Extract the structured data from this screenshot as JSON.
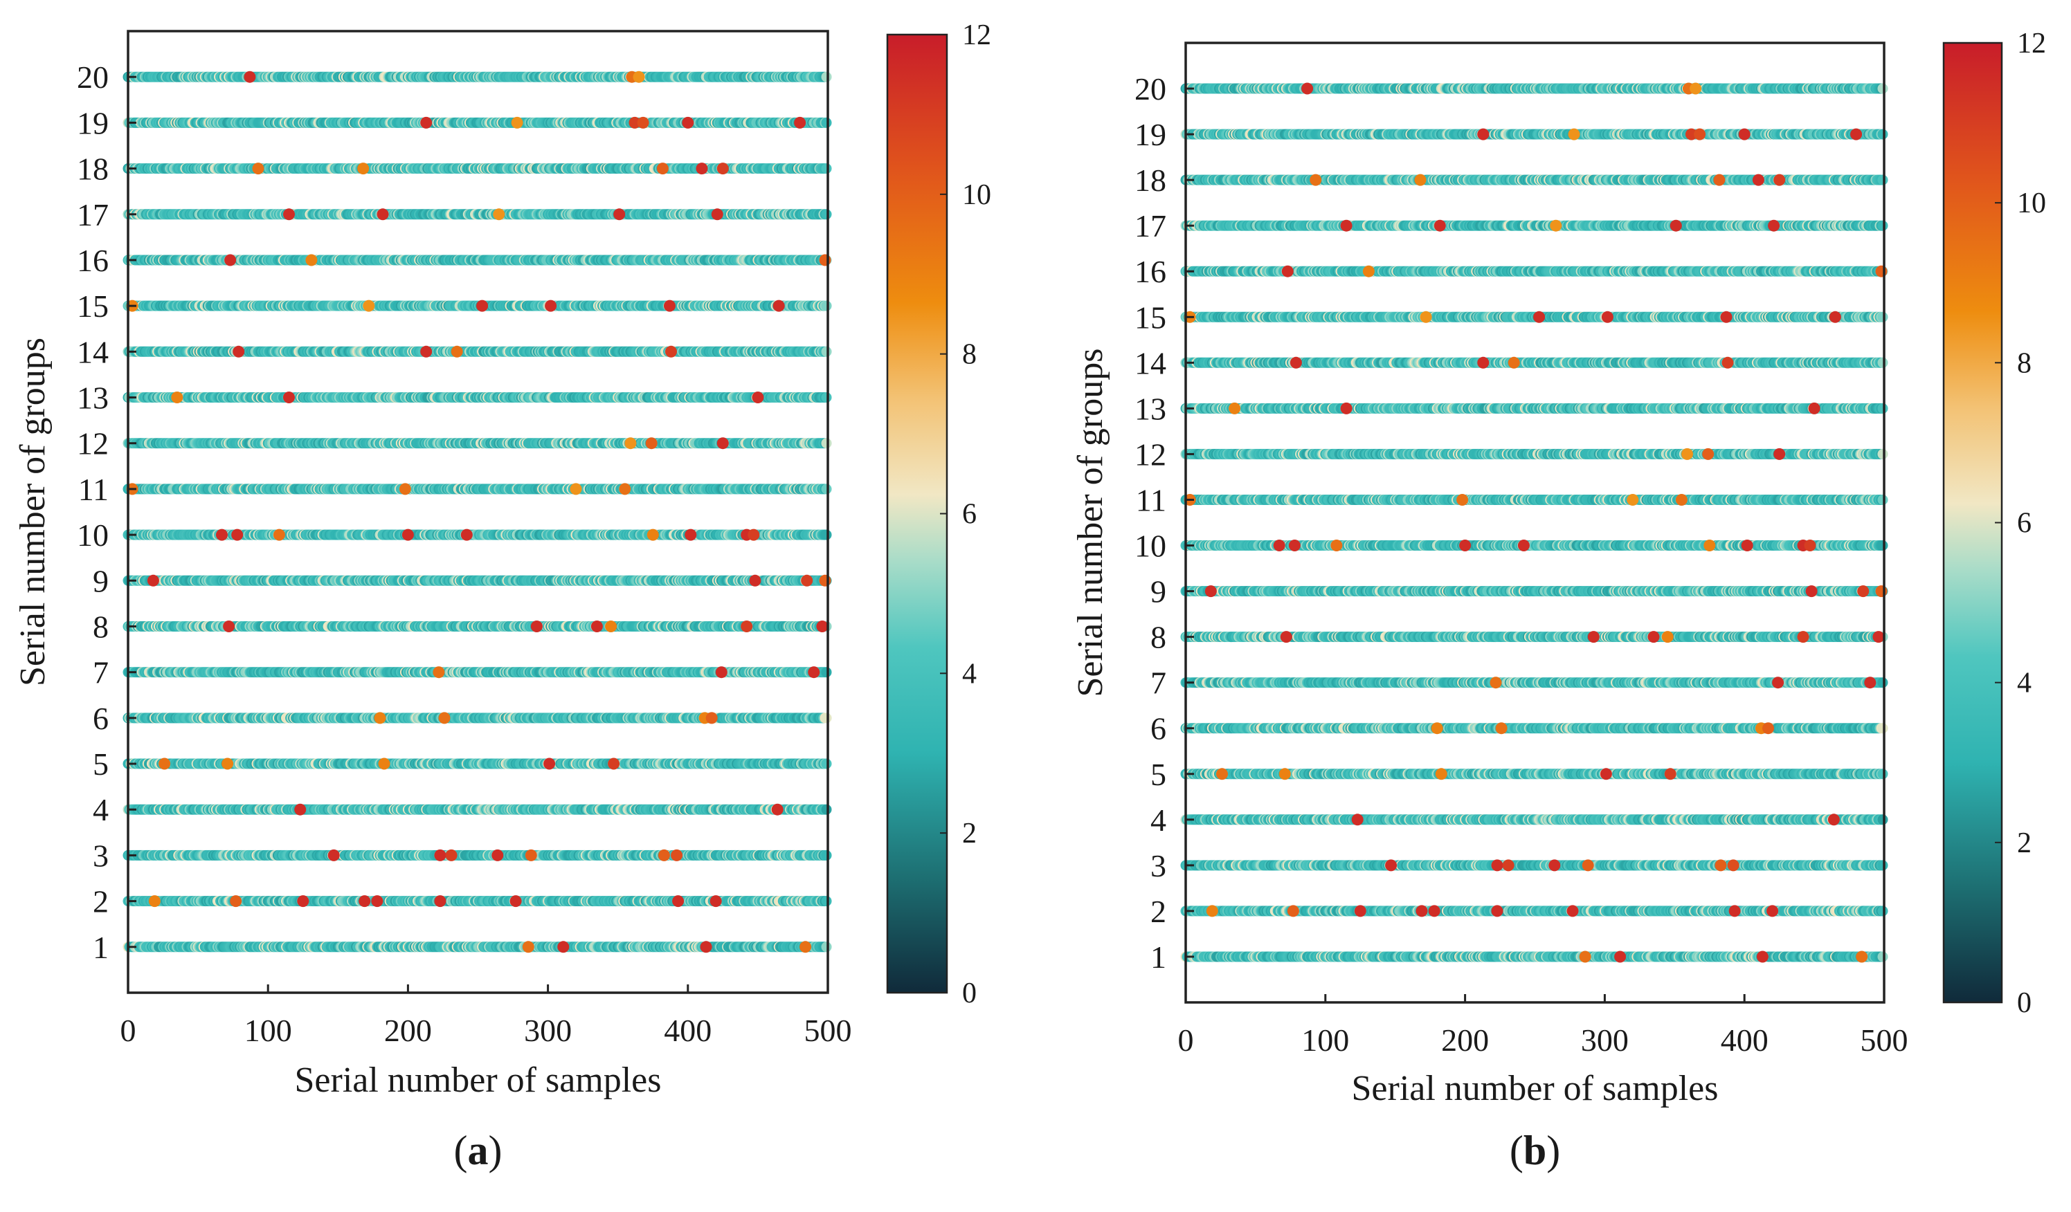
{
  "colors": {
    "colormap": [
      "#102a3a",
      "#1d6f72",
      "#2fb3b1",
      "#4fc6bf",
      "#a8dcc8",
      "#f1e7c4",
      "#f3c274",
      "#ee8d0f",
      "#e0541c",
      "#c81d2a"
    ],
    "axis": "#222222"
  },
  "chart_data": [
    {
      "type": "scatter",
      "panel_label": "(a)",
      "xlabel": "Serial number of samples",
      "ylabel": "Serial number of groups",
      "xlim": [
        0,
        500
      ],
      "ylim": [
        0,
        21
      ],
      "x_ticks": [
        "0",
        "100",
        "200",
        "300",
        "400",
        "500"
      ],
      "y_ticks": [
        "1",
        "2",
        "3",
        "4",
        "5",
        "6",
        "7",
        "8",
        "9",
        "10",
        "11",
        "12",
        "13",
        "14",
        "15",
        "16",
        "17",
        "18",
        "19",
        "20"
      ],
      "colorbar": {
        "min": 0,
        "max": 12,
        "ticks": [
          "0",
          "2",
          "4",
          "6",
          "8",
          "10",
          "12"
        ]
      },
      "samples_per_group": 500,
      "base_value_range": [
        2.8,
        5.6
      ],
      "highlights": {
        "20": [
          [
            87,
            11.5
          ],
          [
            360,
            9.5
          ],
          [
            365,
            8.5
          ]
        ],
        "19": [
          [
            213,
            11.5
          ],
          [
            278,
            8.5
          ],
          [
            362,
            11
          ],
          [
            368,
            10.5
          ],
          [
            400,
            11.5
          ],
          [
            480,
            11.5
          ]
        ],
        "18": [
          [
            93,
            9.5
          ],
          [
            168,
            9
          ],
          [
            382,
            10
          ],
          [
            410,
            11.5
          ],
          [
            425,
            11
          ]
        ],
        "17": [
          [
            115,
            11.5
          ],
          [
            182,
            11.5
          ],
          [
            265,
            8.5
          ],
          [
            351,
            11.5
          ],
          [
            421,
            11.5
          ]
        ],
        "16": [
          [
            73,
            11.5
          ],
          [
            131,
            9
          ],
          [
            498,
            10
          ]
        ],
        "15": [
          [
            3,
            9
          ],
          [
            172,
            8.5
          ],
          [
            253,
            11.5
          ],
          [
            302,
            11.5
          ],
          [
            387,
            11.5
          ],
          [
            465,
            11.5
          ]
        ],
        "14": [
          [
            79,
            11.5
          ],
          [
            213,
            11.5
          ],
          [
            235,
            9.5
          ],
          [
            388,
            11
          ]
        ],
        "13": [
          [
            35,
            9
          ],
          [
            115,
            11.5
          ],
          [
            450,
            11.5
          ]
        ],
        "12": [
          [
            359,
            8.5
          ],
          [
            374,
            10
          ],
          [
            425,
            11.5
          ]
        ],
        "11": [
          [
            3,
            9.5
          ],
          [
            198,
            9.5
          ],
          [
            320,
            8.5
          ],
          [
            355,
            9.5
          ]
        ],
        "10": [
          [
            67,
            11.5
          ],
          [
            78,
            11.5
          ],
          [
            108,
            9.5
          ],
          [
            200,
            11.5
          ],
          [
            242,
            11.5
          ],
          [
            375,
            9
          ],
          [
            402,
            11.5
          ],
          [
            442,
            11.5
          ],
          [
            447,
            11
          ]
        ],
        "9": [
          [
            18,
            11.5
          ],
          [
            448,
            11.5
          ],
          [
            485,
            11
          ],
          [
            498,
            10
          ]
        ],
        "8": [
          [
            72,
            11.5
          ],
          [
            292,
            11.5
          ],
          [
            335,
            11.5
          ],
          [
            345,
            9
          ],
          [
            442,
            11
          ],
          [
            496,
            11.5
          ]
        ],
        "7": [
          [
            222,
            9.5
          ],
          [
            424,
            11.5
          ],
          [
            490,
            11.5
          ]
        ],
        "6": [
          [
            180,
            9
          ],
          [
            226,
            9.5
          ],
          [
            412,
            9
          ],
          [
            417,
            10
          ]
        ],
        "5": [
          [
            26,
            9.5
          ],
          [
            71,
            9
          ],
          [
            183,
            9
          ],
          [
            301,
            11.5
          ],
          [
            347,
            11
          ]
        ],
        "4": [
          [
            123,
            11.5
          ],
          [
            464,
            11.5
          ]
        ],
        "3": [
          [
            147,
            11.5
          ],
          [
            223,
            11.5
          ],
          [
            231,
            11
          ],
          [
            264,
            11.5
          ],
          [
            288,
            10
          ],
          [
            383,
            10
          ],
          [
            392,
            10.5
          ]
        ],
        "2": [
          [
            19,
            9
          ],
          [
            77,
            10
          ],
          [
            125,
            11.5
          ],
          [
            169,
            11.5
          ],
          [
            178,
            11.5
          ],
          [
            223,
            11.5
          ],
          [
            277,
            11.5
          ],
          [
            393,
            11.5
          ],
          [
            420,
            11.5
          ]
        ],
        "1": [
          [
            286,
            9.5
          ],
          [
            311,
            11.5
          ],
          [
            413,
            11.5
          ],
          [
            484,
            9.5
          ]
        ]
      }
    },
    {
      "type": "scatter",
      "panel_label": "(b)",
      "xlabel": "Serial number of samples",
      "ylabel": "Serial number of groups",
      "xlim": [
        0,
        500
      ],
      "ylim": [
        0,
        21
      ],
      "x_ticks": [
        "0",
        "100",
        "200",
        "300",
        "400",
        "500"
      ],
      "y_ticks": [
        "1",
        "2",
        "3",
        "4",
        "5",
        "6",
        "7",
        "8",
        "9",
        "10",
        "11",
        "12",
        "13",
        "14",
        "15",
        "16",
        "17",
        "18",
        "19",
        "20"
      ],
      "colorbar": {
        "min": 0,
        "max": 12,
        "ticks": [
          "0",
          "2",
          "4",
          "6",
          "8",
          "10",
          "12"
        ]
      },
      "samples_per_group": 500,
      "base_value_range": [
        2.8,
        5.6
      ],
      "highlights": {
        "20": [
          [
            87,
            11.5
          ],
          [
            360,
            9.5
          ],
          [
            365,
            8.5
          ]
        ],
        "19": [
          [
            213,
            11.5
          ],
          [
            278,
            8.5
          ],
          [
            362,
            11
          ],
          [
            368,
            10.5
          ],
          [
            400,
            11.5
          ],
          [
            480,
            11.5
          ]
        ],
        "18": [
          [
            93,
            9.5
          ],
          [
            168,
            9
          ],
          [
            382,
            10
          ],
          [
            410,
            11.5
          ],
          [
            425,
            11
          ]
        ],
        "17": [
          [
            115,
            11.5
          ],
          [
            182,
            11.5
          ],
          [
            265,
            8.5
          ],
          [
            351,
            11.5
          ],
          [
            421,
            11.5
          ]
        ],
        "16": [
          [
            73,
            11.5
          ],
          [
            131,
            9
          ],
          [
            498,
            10
          ]
        ],
        "15": [
          [
            3,
            9
          ],
          [
            172,
            8.5
          ],
          [
            253,
            11.5
          ],
          [
            302,
            11.5
          ],
          [
            387,
            11.5
          ],
          [
            465,
            11.5
          ]
        ],
        "14": [
          [
            79,
            11.5
          ],
          [
            213,
            11.5
          ],
          [
            235,
            9.5
          ],
          [
            388,
            11
          ]
        ],
        "13": [
          [
            35,
            9
          ],
          [
            115,
            11.5
          ],
          [
            450,
            11.5
          ]
        ],
        "12": [
          [
            359,
            8.5
          ],
          [
            374,
            10
          ],
          [
            425,
            11.5
          ]
        ],
        "11": [
          [
            3,
            9.5
          ],
          [
            198,
            9.5
          ],
          [
            320,
            8.5
          ],
          [
            355,
            9.5
          ]
        ],
        "10": [
          [
            67,
            11.5
          ],
          [
            78,
            11.5
          ],
          [
            108,
            9.5
          ],
          [
            200,
            11.5
          ],
          [
            242,
            11.5
          ],
          [
            375,
            9
          ],
          [
            402,
            11.5
          ],
          [
            442,
            11.5
          ],
          [
            447,
            11
          ]
        ],
        "9": [
          [
            18,
            11.5
          ],
          [
            448,
            11.5
          ],
          [
            485,
            11
          ],
          [
            498,
            10
          ]
        ],
        "8": [
          [
            72,
            11.5
          ],
          [
            292,
            11.5
          ],
          [
            335,
            11.5
          ],
          [
            345,
            9
          ],
          [
            442,
            11
          ],
          [
            496,
            11.5
          ]
        ],
        "7": [
          [
            222,
            9.5
          ],
          [
            424,
            11.5
          ],
          [
            490,
            11.5
          ]
        ],
        "6": [
          [
            180,
            9
          ],
          [
            226,
            9.5
          ],
          [
            412,
            9
          ],
          [
            417,
            10
          ]
        ],
        "5": [
          [
            26,
            9.5
          ],
          [
            71,
            9
          ],
          [
            183,
            9
          ],
          [
            301,
            11.5
          ],
          [
            347,
            11
          ]
        ],
        "4": [
          [
            123,
            11.5
          ],
          [
            464,
            11.5
          ]
        ],
        "3": [
          [
            147,
            11.5
          ],
          [
            223,
            11.5
          ],
          [
            231,
            11
          ],
          [
            264,
            11.5
          ],
          [
            288,
            10
          ],
          [
            383,
            10
          ],
          [
            392,
            10.5
          ]
        ],
        "2": [
          [
            19,
            9
          ],
          [
            77,
            10
          ],
          [
            125,
            11.5
          ],
          [
            169,
            11.5
          ],
          [
            178,
            11.5
          ],
          [
            223,
            11.5
          ],
          [
            277,
            11.5
          ],
          [
            393,
            11.5
          ],
          [
            420,
            11.5
          ]
        ],
        "1": [
          [
            286,
            9.5
          ],
          [
            311,
            11.5
          ],
          [
            413,
            11.5
          ],
          [
            484,
            9.5
          ]
        ]
      }
    }
  ]
}
